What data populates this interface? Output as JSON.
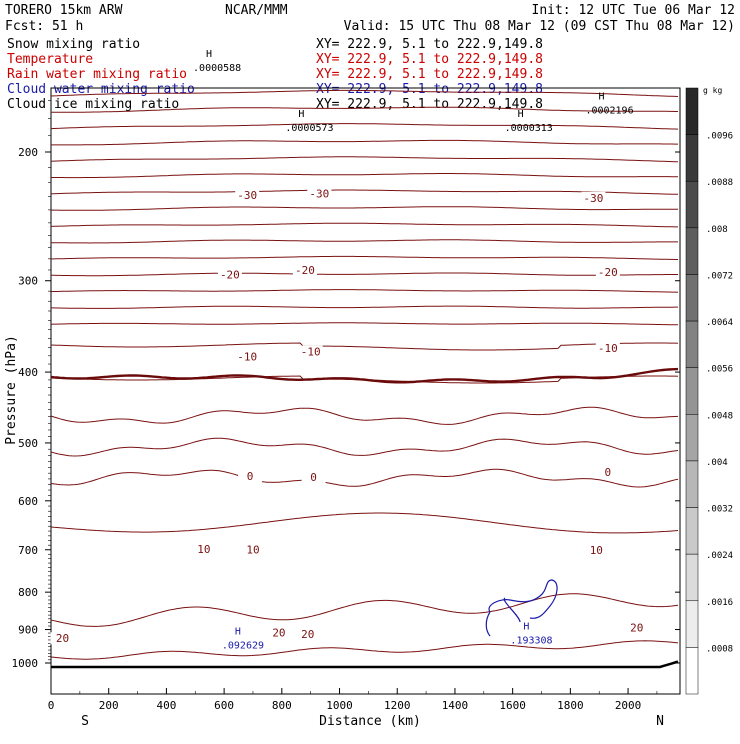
{
  "header": {
    "model": "TORERO  15km ARW",
    "forecast": "Fcst:    51 h",
    "center": "NCAR/MMM",
    "init": "Init: 12 UTC Tue 06 Mar 12",
    "valid": "Valid: 15 UTC Thu 08 Mar 12 (09 CST Thu 08 Mar 12)"
  },
  "fields": [
    {
      "name": "Snow mixing ratio",
      "xy": "XY= 222.9,  5.1 to 222.9,149.8",
      "color": "#000000"
    },
    {
      "name": "Temperature",
      "xy": "XY= 222.9,  5.1 to 222.9,149.8",
      "color": "#cc0000"
    },
    {
      "name": "Rain water mixing ratio",
      "xy": "XY= 222.9,  5.1 to 222.9,149.8",
      "color": "#cc0000"
    },
    {
      "name": "Cloud water mixing ratio",
      "xy": "XY= 222.9,  5.1 to 222.9,149.8",
      "color": "#1a1aaa"
    },
    {
      "name": "Cloud ice mixing ratio",
      "xy": "XY= 222.9,  5.1 to 222.9,149.8",
      "color": "#000000"
    }
  ],
  "colors": {
    "temperature": "#7a1010",
    "zero_isotherm": "#6a0a0a",
    "cloud_water": "#1a1aaa",
    "terrain": "#000000"
  },
  "chart_data": {
    "type": "line",
    "xlabel": "Distance (km)",
    "ylabel": "Pressure (hPa)",
    "xlim": [
      0,
      2180
    ],
    "ylim": [
      1000,
      100
    ],
    "y_scale": "log",
    "x_ticks": [
      0,
      200,
      400,
      600,
      800,
      1000,
      1200,
      1400,
      1600,
      1800,
      2000
    ],
    "y_ticks": [
      200,
      300,
      400,
      500,
      600,
      700,
      800,
      900,
      1000
    ],
    "end_labels": {
      "left": "S",
      "right": "N"
    },
    "isotherm_labels": [
      {
        "x": 680,
        "p": 229,
        "text": "-30"
      },
      {
        "x": 930,
        "p": 228,
        "text": "-30"
      },
      {
        "x": 1880,
        "p": 231,
        "text": "-30"
      },
      {
        "x": 620,
        "p": 294,
        "text": "-20"
      },
      {
        "x": 880,
        "p": 290,
        "text": "-20"
      },
      {
        "x": 1930,
        "p": 292,
        "text": "-20"
      },
      {
        "x": 680,
        "p": 381,
        "text": "-10"
      },
      {
        "x": 900,
        "p": 375,
        "text": "-10"
      },
      {
        "x": 1930,
        "p": 371,
        "text": "-10"
      },
      {
        "x": 690,
        "p": 555,
        "text": "0"
      },
      {
        "x": 910,
        "p": 557,
        "text": "0"
      },
      {
        "x": 1930,
        "p": 548,
        "text": "0"
      },
      {
        "x": 530,
        "p": 698,
        "text": "10"
      },
      {
        "x": 700,
        "p": 699,
        "text": "10"
      },
      {
        "x": 1890,
        "p": 700,
        "text": "10"
      },
      {
        "x": 40,
        "p": 925,
        "text": "20"
      },
      {
        "x": 790,
        "p": 909,
        "text": "20"
      },
      {
        "x": 890,
        "p": 912,
        "text": "20"
      },
      {
        "x": 2030,
        "p": 894,
        "text": "20"
      }
    ],
    "ice_maxima": [
      {
        "x": 520,
        "p": 154,
        "text": ".0000588"
      },
      {
        "x": 840,
        "p": 186,
        "text": ".0000573"
      },
      {
        "x": 1600,
        "p": 186,
        "text": ".0000313"
      },
      {
        "x": 1880,
        "p": 176,
        "text": ".0002196"
      }
    ],
    "cloud_water_maxima": [
      {
        "x": 620,
        "p": 949,
        "text": ".092629"
      },
      {
        "x": 1620,
        "p": 935,
        "text": ".193308"
      }
    ],
    "colorbar": {
      "unit": "g kg",
      "ticks": [
        ".0096",
        ".0088",
        ".008",
        ".0072",
        ".0064",
        ".0056",
        ".0048",
        ".004",
        ".0032",
        ".0024",
        ".0016",
        ".0008"
      ]
    }
  }
}
